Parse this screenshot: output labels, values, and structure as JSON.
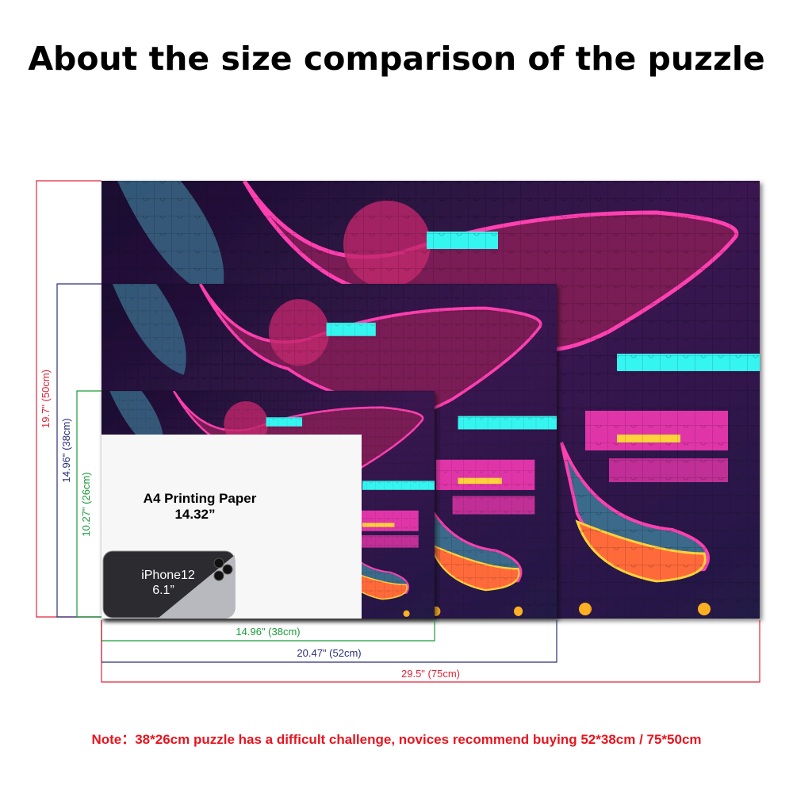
{
  "title": "About the size comparison of the puzzle",
  "heights": [
    "19.7\" (50cm)",
    "14.96\" (38cm)",
    "10.27\" (26cm)"
  ],
  "widths": [
    "14.96\" (38cm)",
    "20.47\" (52cm)",
    "29.5\" (75cm)"
  ],
  "paper": {
    "label": "A4 Printing Paper",
    "size": "14.32”"
  },
  "phone": {
    "label": "iPhone12",
    "size": "6.1”"
  },
  "note": "Note：38*26cm puzzle has a difficult challenge, novices recommend buying 52*38cm / 75*50cm"
}
